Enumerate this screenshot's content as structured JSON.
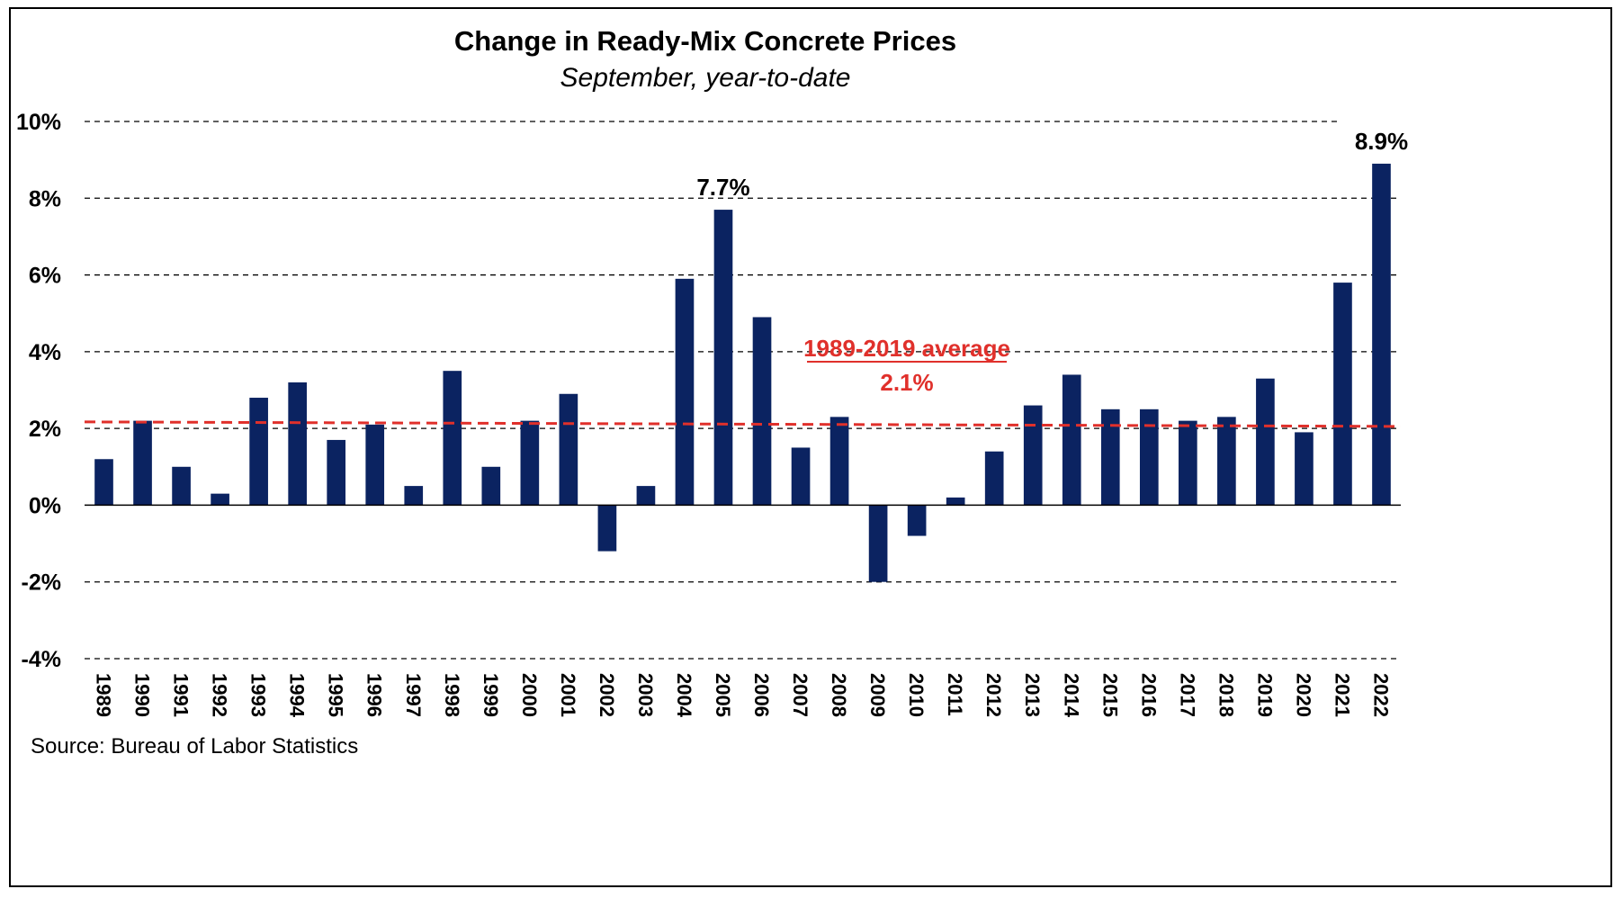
{
  "chart_data": {
    "type": "bar",
    "title": "Change in Ready-Mix Concrete Prices",
    "subtitle": "September, year-to-date",
    "categories": [
      "1989",
      "1990",
      "1991",
      "1992",
      "1993",
      "1994",
      "1995",
      "1996",
      "1997",
      "1998",
      "1999",
      "2000",
      "2001",
      "2002",
      "2003",
      "2004",
      "2005",
      "2006",
      "2007",
      "2008",
      "2009",
      "2010",
      "2011",
      "2012",
      "2013",
      "2014",
      "2015",
      "2016",
      "2017",
      "2018",
      "2019",
      "2020",
      "2021",
      "2022"
    ],
    "values": [
      1.2,
      2.2,
      1.0,
      0.3,
      2.8,
      3.2,
      1.7,
      2.1,
      0.5,
      3.5,
      1.0,
      2.2,
      2.9,
      -1.2,
      0.5,
      5.9,
      7.7,
      4.9,
      1.5,
      2.3,
      -2.0,
      -0.8,
      0.2,
      1.4,
      2.6,
      3.4,
      2.5,
      2.5,
      2.2,
      2.3,
      3.3,
      1.9,
      5.8,
      8.9
    ],
    "ylim": [
      -4,
      10
    ],
    "yticks": [
      "10%",
      "8%",
      "6%",
      "4%",
      "2%",
      "0%",
      "-2%",
      "-4%"
    ],
    "ytick_values": [
      10,
      8,
      6,
      4,
      2,
      0,
      -2,
      -4
    ],
    "grid": true,
    "bar_color": "#0b2361",
    "data_labels": [
      {
        "category": "2005",
        "text": "7.7%"
      },
      {
        "category": "2022",
        "text": "8.9%"
      }
    ],
    "reference_line": {
      "value": 2.1,
      "color": "#e0302b",
      "label_line1": "1989-2019 average",
      "label_line2": "2.1%"
    },
    "source": "Source: Bureau of Labor Statistics"
  }
}
